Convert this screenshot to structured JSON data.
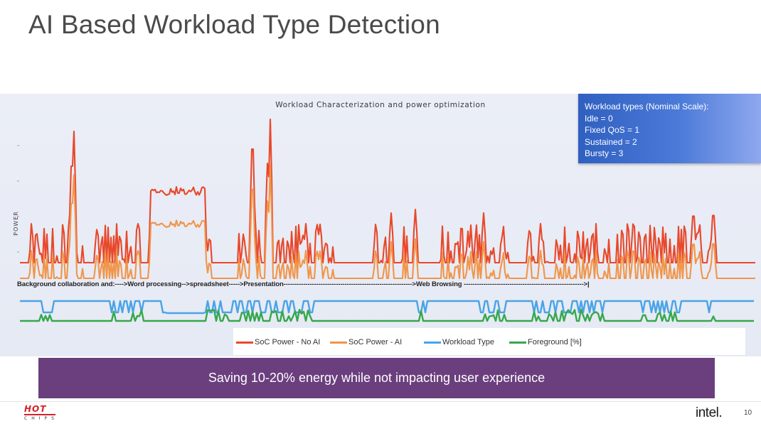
{
  "slide": {
    "title": "AI Based Workload Type Detection",
    "banner": "Saving 10-20% energy while not impacting user experience",
    "page_number": "10",
    "brand": "intel.",
    "event_logo_word": "HOT",
    "event_logo_sub": "CHIPS"
  },
  "workload_legend": {
    "heading": "Workload types (Nominal Scale):",
    "items": [
      "Idle = 0",
      "Fixed QoS = 1",
      "Sustained = 2",
      "Bursty = 3"
    ]
  },
  "chart_data": {
    "type": "line",
    "title": "Workload Characterization and power optimization",
    "ylabel": "POWER",
    "xlabel": "",
    "annotation": "Background collaboration and:---->Word processing-->spreadsheet----->Presentation----------------------------------------------------------->Web Browsing ------------------------------------------------------->|",
    "grid": false,
    "legend_position": "bottom",
    "series": [
      {
        "name": "SoC Power - No AI",
        "color": "#e8482a"
      },
      {
        "name": "SoC Power - AI",
        "color": "#f0954a"
      },
      {
        "name": "Workload Type",
        "color": "#4aa3e6"
      },
      {
        "name": "Foreground [%]",
        "color": "#35a84c"
      }
    ]
  },
  "colors": {
    "legend_box_start": "#2f5fc0",
    "banner": "#6b3f7e",
    "no_ai": "#e8482a",
    "ai": "#f0954a",
    "workload": "#4aa3e6",
    "foreground": "#35a84c"
  }
}
